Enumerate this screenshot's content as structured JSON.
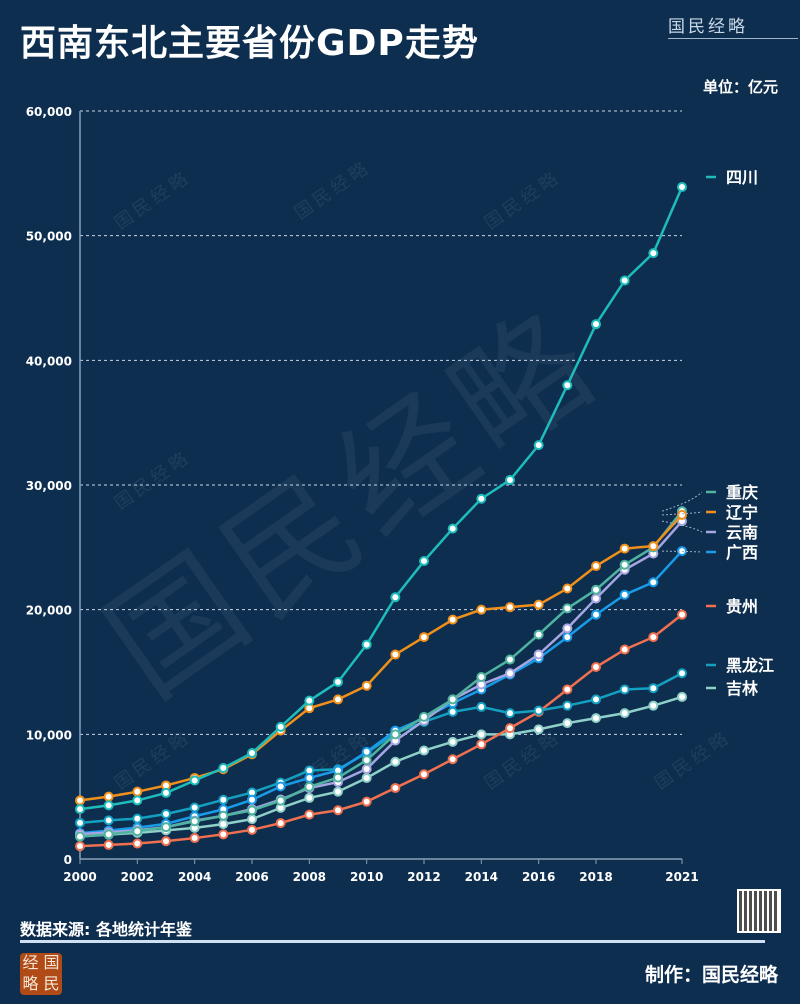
{
  "header": {
    "title": "西南东北主要省份GDP走势",
    "brand": "国民经略",
    "unit": "单位：亿元"
  },
  "footer": {
    "source": "数据来源: 各地统计年鉴",
    "maker": "制作：国民经略",
    "seal": [
      "经",
      "国",
      "略",
      "民"
    ]
  },
  "watermark": "国民经略",
  "chart_data": {
    "type": "line",
    "title": "西南东北主要省份GDP走势",
    "ylabel": "亿元",
    "x": [
      2000,
      2001,
      2002,
      2003,
      2004,
      2005,
      2006,
      2007,
      2008,
      2009,
      2010,
      2011,
      2012,
      2013,
      2014,
      2015,
      2016,
      2017,
      2018,
      2019,
      2020,
      2021
    ],
    "xticks": [
      "2000",
      "2002",
      "2004",
      "2006",
      "2008",
      "2010",
      "2012",
      "2014",
      "2016",
      "2018",
      "2021"
    ],
    "xtick_values": [
      2000,
      2002,
      2004,
      2006,
      2008,
      2010,
      2012,
      2014,
      2016,
      2018,
      2021
    ],
    "yticks": [
      "0",
      "10,000",
      "20,000",
      "30,000",
      "40,000",
      "50,000",
      "60,000"
    ],
    "ylim": [
      0,
      60000
    ],
    "grid": true,
    "legend_position": "right",
    "series": [
      {
        "name": "四川",
        "color": "#1fbcbc",
        "values": [
          4000,
          4300,
          4700,
          5300,
          6300,
          7300,
          8500,
          10600,
          12700,
          14200,
          17200,
          21000,
          23900,
          26500,
          28900,
          30400,
          33200,
          38000,
          42900,
          46400,
          48600,
          53900
        ]
      },
      {
        "name": "重庆",
        "color": "#4fb3a0",
        "values": [
          1800,
          1980,
          2230,
          2560,
          3030,
          3470,
          3900,
          4680,
          5790,
          6530,
          7930,
          10000,
          11400,
          12800,
          14600,
          16000,
          18000,
          20100,
          21600,
          23600,
          25000,
          27900
        ]
      },
      {
        "name": "辽宁",
        "color": "#f0901a",
        "values": [
          4700,
          5000,
          5400,
          5900,
          6500,
          7200,
          8400,
          10300,
          12100,
          12800,
          13900,
          16400,
          17800,
          19200,
          20000,
          20200,
          20400,
          21700,
          23500,
          24900,
          25100,
          27600
        ]
      },
      {
        "name": "云南",
        "color": "#a6a6e2",
        "values": [
          2000,
          2140,
          2310,
          2560,
          3080,
          3460,
          4000,
          4770,
          5690,
          6170,
          7220,
          9500,
          11100,
          12800,
          14000,
          14900,
          16400,
          18500,
          20900,
          23200,
          24500,
          27100
        ]
      },
      {
        "name": "广西",
        "color": "#1a9be8",
        "values": [
          2080,
          2280,
          2520,
          2820,
          3430,
          3980,
          4750,
          5820,
          6500,
          7100,
          8600,
          10300,
          11300,
          12500,
          13600,
          14800,
          16100,
          17800,
          19600,
          21200,
          22200,
          24700
        ]
      },
      {
        "name": "贵州",
        "color": "#f0704f",
        "values": [
          1030,
          1130,
          1240,
          1430,
          1680,
          1980,
          2340,
          2880,
          3560,
          3910,
          4600,
          5700,
          6800,
          8000,
          9200,
          10500,
          11800,
          13600,
          15400,
          16800,
          17800,
          19600
        ]
      },
      {
        "name": "黑龙江",
        "color": "#14a0c0",
        "values": [
          2900,
          3100,
          3240,
          3610,
          4130,
          4750,
          5330,
          6130,
          7100,
          7200,
          8500,
          10100,
          11000,
          11800,
          12200,
          11700,
          11900,
          12300,
          12800,
          13600,
          13700,
          14900
        ]
      },
      {
        "name": "吉林",
        "color": "#8fd0c8",
        "values": [
          1800,
          1950,
          2100,
          2300,
          2500,
          2800,
          3200,
          4100,
          4900,
          5400,
          6500,
          7800,
          8700,
          9400,
          10000,
          10000,
          10400,
          10900,
          11300,
          11700,
          12300,
          13000
        ]
      }
    ]
  }
}
